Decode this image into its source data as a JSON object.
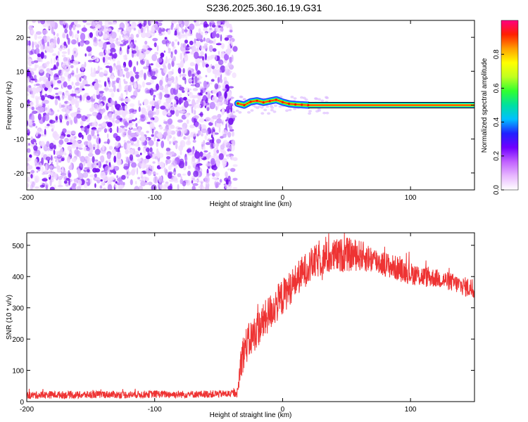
{
  "title": "S236.2025.360.16.19.G31",
  "chart_data": [
    {
      "type": "heatmap",
      "xlabel": "Height of straight line (km)",
      "ylabel": "Frequency (Hz)",
      "xlim": [
        -200,
        150
      ],
      "ylim": [
        -25,
        25
      ],
      "x_ticks": [
        -200,
        -100,
        0,
        100
      ],
      "x_tick_labels": [
        "-200",
        "-100",
        "0",
        "100"
      ],
      "y_ticks": [
        -20,
        -10,
        0,
        10,
        20
      ],
      "y_tick_labels": [
        "-20",
        "-10",
        "0",
        "10",
        "20"
      ],
      "noise_region_x": [
        -200,
        -37
      ],
      "signal_line": {
        "x_start": -37,
        "x_end": 150,
        "frequency": 0,
        "amplitude": 1.0
      },
      "signal_wiggle": [
        {
          "x": -35,
          "f": 0.5
        },
        {
          "x": -30,
          "f": 0.0
        },
        {
          "x": -25,
          "f": 1.0
        },
        {
          "x": -20,
          "f": 1.3
        },
        {
          "x": -15,
          "f": 0.8
        },
        {
          "x": -10,
          "f": 1.2
        },
        {
          "x": -5,
          "f": 1.6
        },
        {
          "x": 0,
          "f": 0.9
        },
        {
          "x": 5,
          "f": 0.4
        },
        {
          "x": 10,
          "f": 0.2
        },
        {
          "x": 15,
          "f": 0.1
        },
        {
          "x": 20,
          "f": 0.0
        }
      ],
      "colorbar": {
        "label": "Normalized spectral amplitude",
        "range": [
          0,
          1
        ],
        "ticks": [
          0.0,
          0.2,
          0.4,
          0.6,
          0.8
        ],
        "tick_labels": [
          "0.0",
          "0.2",
          "0.4",
          "0.6",
          "0.8"
        ],
        "colors": [
          "#ffffff",
          "#e8b8ff",
          "#c060ff",
          "#7000ff",
          "#2020ff",
          "#00c0ff",
          "#00e0a0",
          "#30ff30",
          "#c0ff20",
          "#ffff00",
          "#ffa000",
          "#ff2000",
          "#ff0080"
        ]
      }
    },
    {
      "type": "line",
      "xlabel": "Height of straight line (km)",
      "ylabel": "SNR (10 * v/v)",
      "xlim": [
        -200,
        150
      ],
      "ylim": [
        0,
        540
      ],
      "x_ticks": [
        -200,
        -100,
        0,
        100
      ],
      "x_tick_labels": [
        "-200",
        "-100",
        "0",
        "100"
      ],
      "y_ticks": [
        0,
        100,
        200,
        300,
        400,
        500
      ],
      "y_tick_labels": [
        "0",
        "100",
        "200",
        "300",
        "400",
        "500"
      ],
      "series": [
        {
          "name": "SNR",
          "color": "#ee3333",
          "x": [
            -200,
            -180,
            -160,
            -140,
            -120,
            -100,
            -80,
            -60,
            -40,
            -35,
            -33,
            -30,
            -25,
            -20,
            -15,
            -10,
            -5,
            0,
            5,
            10,
            15,
            20,
            25,
            30,
            40,
            50,
            60,
            70,
            80,
            90,
            100,
            110,
            120,
            130,
            140,
            150
          ],
          "values": [
            20,
            22,
            21,
            23,
            22,
            24,
            23,
            24,
            25,
            30,
            120,
            170,
            200,
            230,
            255,
            285,
            310,
            335,
            360,
            385,
            410,
            430,
            445,
            455,
            465,
            470,
            468,
            455,
            440,
            425,
            410,
            400,
            395,
            385,
            370,
            360
          ],
          "noise_amplitude": [
            12,
            12,
            12,
            12,
            12,
            12,
            12,
            12,
            12,
            15,
            60,
            60,
            60,
            60,
            60,
            60,
            60,
            60,
            55,
            55,
            55,
            55,
            55,
            55,
            55,
            55,
            50,
            45,
            40,
            40,
            35,
            35,
            30,
            30,
            30,
            35
          ]
        }
      ]
    }
  ]
}
